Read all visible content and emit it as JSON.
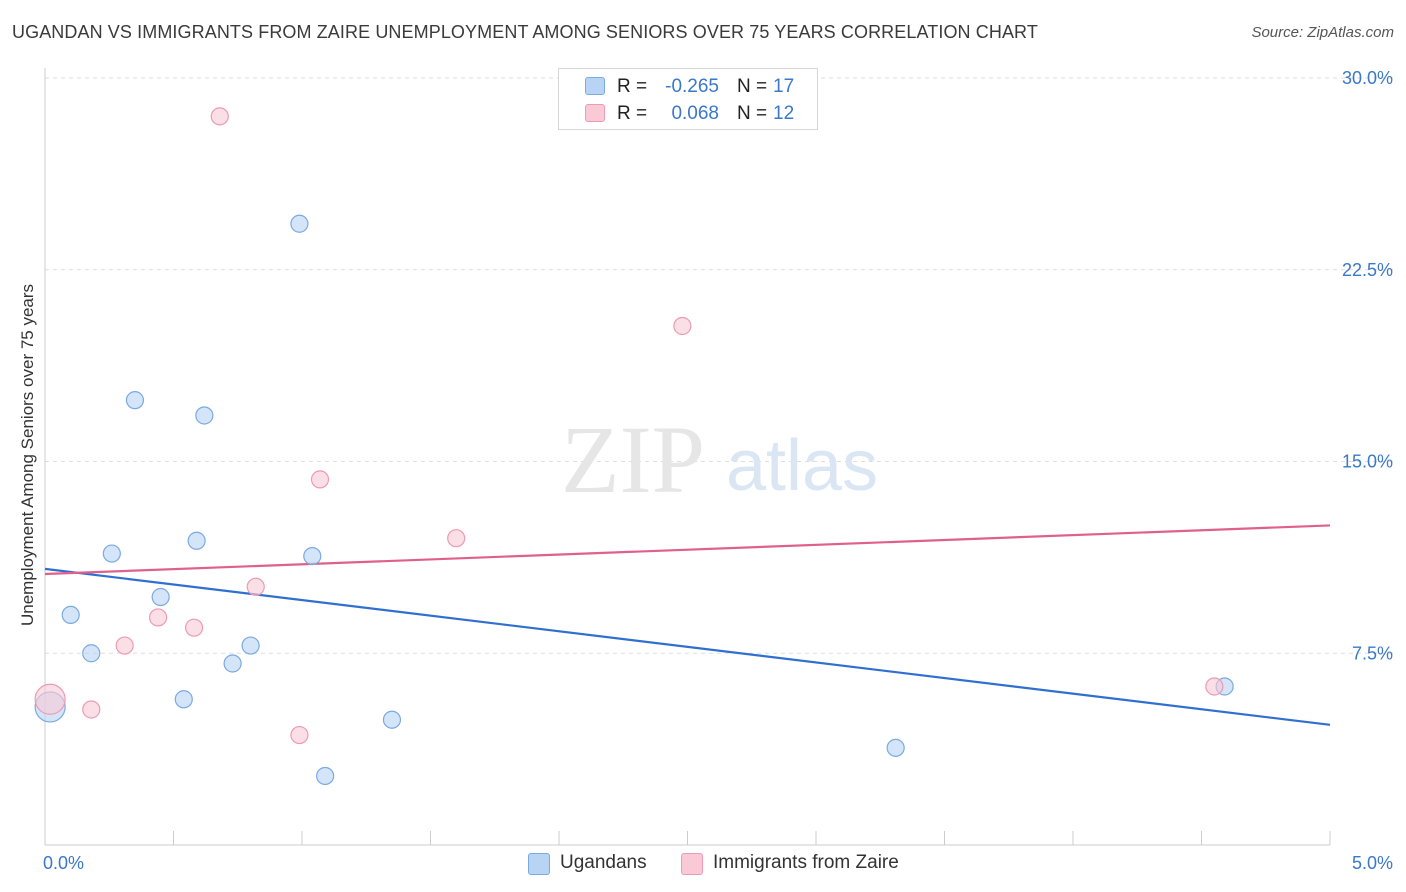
{
  "title": "UGANDAN VS IMMIGRANTS FROM ZAIRE UNEMPLOYMENT AMONG SENIORS OVER 75 YEARS CORRELATION CHART",
  "source": "Source: ZipAtlas.com",
  "watermark": {
    "zip": "ZIP",
    "atlas": "atlas"
  },
  "colors": {
    "ugandans_fill": "#b8d4f5",
    "ugandans_stroke": "#7aaae0",
    "ugandans_line": "#2f6fd0",
    "zaire_fill": "#f9c9d6",
    "zaire_stroke": "#ee9ab2",
    "zaire_line": "#e0608a",
    "tick_label": "#3a78c9",
    "grid": "#dddddd"
  },
  "legend_top": [
    {
      "swatch": "ugandans",
      "r_label": "R =",
      "r_value": "-0.265",
      "n_label": "N =",
      "n_value": "17"
    },
    {
      "swatch": "zaire",
      "r_label": "R =",
      "r_value": "0.068",
      "n_label": "N =",
      "n_value": "12"
    }
  ],
  "legend_bottom": [
    "Ugandans",
    "Immigrants from Zaire"
  ],
  "chart_data": {
    "type": "scatter",
    "xlabel": "",
    "ylabel": "Unemployment Among Seniors over 75 years",
    "xlim": [
      0,
      5
    ],
    "ylim": [
      0,
      30
    ],
    "x_tick_labels": [
      "0.0%",
      "5.0%"
    ],
    "y_ticks": [
      7.5,
      15.0,
      22.5,
      30.0
    ],
    "y_tick_labels": [
      "7.5%",
      "15.0%",
      "22.5%",
      "30.0%"
    ],
    "grid": "horizontal dashed",
    "series": [
      {
        "name": "Ugandans",
        "color": "#b8d4f5",
        "points": [
          [
            0.02,
            5.4
          ],
          [
            0.1,
            9.0
          ],
          [
            0.18,
            7.5
          ],
          [
            0.26,
            11.4
          ],
          [
            0.35,
            17.4
          ],
          [
            0.45,
            9.7
          ],
          [
            0.54,
            5.7
          ],
          [
            0.59,
            11.9
          ],
          [
            0.62,
            16.8
          ],
          [
            0.73,
            7.1
          ],
          [
            0.8,
            7.8
          ],
          [
            0.99,
            24.3
          ],
          [
            1.04,
            11.3
          ],
          [
            1.09,
            2.7
          ],
          [
            1.35,
            4.9
          ],
          [
            3.31,
            3.8
          ],
          [
            4.59,
            6.2
          ]
        ],
        "trend": [
          [
            0.0,
            10.8
          ],
          [
            5.0,
            4.7
          ]
        ]
      },
      {
        "name": "Immigrants from Zaire",
        "color": "#f9c9d6",
        "points": [
          [
            0.02,
            5.7
          ],
          [
            0.18,
            5.3
          ],
          [
            0.31,
            7.8
          ],
          [
            0.44,
            8.9
          ],
          [
            0.58,
            8.5
          ],
          [
            0.68,
            28.5
          ],
          [
            0.82,
            10.1
          ],
          [
            0.99,
            4.3
          ],
          [
            1.07,
            14.3
          ],
          [
            1.6,
            12.0
          ],
          [
            2.48,
            20.3
          ],
          [
            4.55,
            6.2
          ]
        ],
        "trend": [
          [
            0.0,
            10.6
          ],
          [
            5.0,
            12.5
          ]
        ]
      }
    ]
  }
}
